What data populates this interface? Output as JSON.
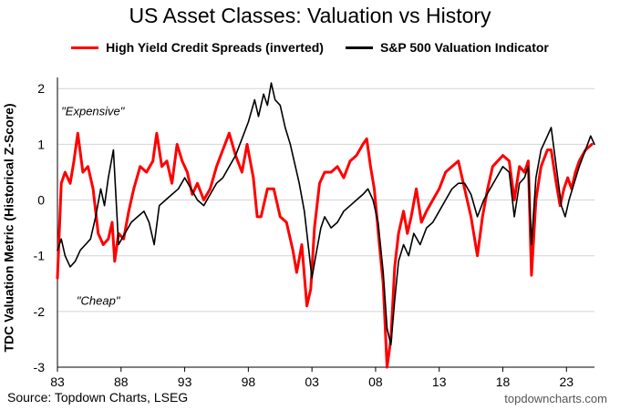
{
  "chart_data": {
    "type": "line",
    "title": "US Asset Classes: Valuation vs History",
    "ylabel": "TDC Valuation Metric (Historical Z-Score)",
    "xlabel": "",
    "xlim": [
      1983,
      2025.2
    ],
    "ylim": [
      -3,
      2.2
    ],
    "x_ticks": [
      {
        "label": "83",
        "value": 1983
      },
      {
        "label": "88",
        "value": 1988
      },
      {
        "label": "93",
        "value": 1993
      },
      {
        "label": "98",
        "value": 1998
      },
      {
        "label": "03",
        "value": 2003
      },
      {
        "label": "08",
        "value": 2008
      },
      {
        "label": "13",
        "value": 2013
      },
      {
        "label": "18",
        "value": 2018
      },
      {
        "label": "23",
        "value": 2023
      }
    ],
    "y_ticks": [
      {
        "label": "-3",
        "value": -3
      },
      {
        "label": "-2",
        "value": -2
      },
      {
        "label": "-1",
        "value": -1
      },
      {
        "label": "0",
        "value": 0
      },
      {
        "label": "1",
        "value": 1
      },
      {
        "label": "2",
        "value": 2
      }
    ],
    "annotations": [
      {
        "text": "\"Expensive\"",
        "x": 1983.3,
        "y": 1.6
      },
      {
        "text": "\"Cheap\"",
        "x": 1984.5,
        "y": -1.8
      }
    ],
    "series": [
      {
        "name": "High Yield Credit Spreads (inverted)",
        "color": "#ff0000",
        "points": [
          [
            1983.0,
            -1.4
          ],
          [
            1983.3,
            0.3
          ],
          [
            1983.6,
            0.5
          ],
          [
            1984.0,
            0.3
          ],
          [
            1984.3,
            0.7
          ],
          [
            1984.6,
            1.2
          ],
          [
            1985.0,
            0.5
          ],
          [
            1985.4,
            0.6
          ],
          [
            1985.8,
            0.2
          ],
          [
            1986.2,
            -0.6
          ],
          [
            1986.6,
            -0.8
          ],
          [
            1987.0,
            -0.7
          ],
          [
            1987.3,
            -0.4
          ],
          [
            1987.5,
            -1.1
          ],
          [
            1987.8,
            -0.6
          ],
          [
            1988.2,
            -0.7
          ],
          [
            1988.6,
            -0.2
          ],
          [
            1989.0,
            0.2
          ],
          [
            1989.5,
            0.6
          ],
          [
            1990.0,
            0.5
          ],
          [
            1990.5,
            0.7
          ],
          [
            1990.8,
            1.2
          ],
          [
            1991.2,
            0.6
          ],
          [
            1991.6,
            0.7
          ],
          [
            1992.0,
            0.3
          ],
          [
            1992.4,
            1.0
          ],
          [
            1992.8,
            0.7
          ],
          [
            1993.2,
            0.5
          ],
          [
            1993.6,
            0.1
          ],
          [
            1994.0,
            0.3
          ],
          [
            1994.5,
            0.0
          ],
          [
            1995.0,
            0.2
          ],
          [
            1995.5,
            0.6
          ],
          [
            1996.0,
            0.9
          ],
          [
            1996.5,
            1.2
          ],
          [
            1997.0,
            0.8
          ],
          [
            1997.5,
            0.5
          ],
          [
            1997.9,
            1.0
          ],
          [
            1998.4,
            0.4
          ],
          [
            1998.7,
            -0.3
          ],
          [
            1999.0,
            -0.3
          ],
          [
            1999.5,
            0.2
          ],
          [
            2000.0,
            0.2
          ],
          [
            2000.5,
            -0.3
          ],
          [
            2001.0,
            -0.4
          ],
          [
            2001.5,
            -0.9
          ],
          [
            2001.8,
            -1.3
          ],
          [
            2002.2,
            -0.8
          ],
          [
            2002.6,
            -1.9
          ],
          [
            2002.9,
            -1.6
          ],
          [
            2003.2,
            -0.5
          ],
          [
            2003.6,
            0.3
          ],
          [
            2004.0,
            0.5
          ],
          [
            2004.5,
            0.5
          ],
          [
            2005.0,
            0.6
          ],
          [
            2005.5,
            0.4
          ],
          [
            2006.0,
            0.7
          ],
          [
            2006.5,
            0.8
          ],
          [
            2007.0,
            1.0
          ],
          [
            2007.3,
            1.1
          ],
          [
            2007.6,
            0.6
          ],
          [
            2007.9,
            0.2
          ],
          [
            2008.3,
            -0.8
          ],
          [
            2008.6,
            -1.5
          ],
          [
            2008.9,
            -3.0
          ],
          [
            2009.2,
            -2.5
          ],
          [
            2009.5,
            -1.2
          ],
          [
            2009.8,
            -0.6
          ],
          [
            2010.2,
            -0.2
          ],
          [
            2010.5,
            -0.6
          ],
          [
            2010.8,
            -0.3
          ],
          [
            2011.2,
            0.2
          ],
          [
            2011.6,
            -0.4
          ],
          [
            2012.0,
            -0.2
          ],
          [
            2012.5,
            0.0
          ],
          [
            2013.0,
            0.2
          ],
          [
            2013.5,
            0.5
          ],
          [
            2014.0,
            0.6
          ],
          [
            2014.5,
            0.7
          ],
          [
            2015.0,
            0.2
          ],
          [
            2015.5,
            -0.3
          ],
          [
            2016.0,
            -1.0
          ],
          [
            2016.4,
            -0.3
          ],
          [
            2016.8,
            0.2
          ],
          [
            2017.2,
            0.6
          ],
          [
            2017.6,
            0.7
          ],
          [
            2018.0,
            0.8
          ],
          [
            2018.5,
            0.7
          ],
          [
            2018.9,
            0.0
          ],
          [
            2019.3,
            0.6
          ],
          [
            2019.7,
            0.5
          ],
          [
            2020.0,
            0.7
          ],
          [
            2020.25,
            -1.35
          ],
          [
            2020.6,
            0.0
          ],
          [
            2021.0,
            0.6
          ],
          [
            2021.5,
            0.9
          ],
          [
            2021.8,
            0.9
          ],
          [
            2022.2,
            0.3
          ],
          [
            2022.5,
            -0.1
          ],
          [
            2022.8,
            0.2
          ],
          [
            2023.1,
            0.4
          ],
          [
            2023.4,
            0.2
          ],
          [
            2023.7,
            0.5
          ],
          [
            2024.0,
            0.7
          ],
          [
            2024.5,
            0.9
          ],
          [
            2025.0,
            1.0
          ]
        ]
      },
      {
        "name": "S&P 500 Valuation Indicator",
        "color": "#000000",
        "points": [
          [
            1983.0,
            -0.9
          ],
          [
            1983.3,
            -0.7
          ],
          [
            1983.6,
            -1.0
          ],
          [
            1984.0,
            -1.2
          ],
          [
            1984.4,
            -1.1
          ],
          [
            1984.8,
            -0.9
          ],
          [
            1985.2,
            -0.8
          ],
          [
            1985.6,
            -0.7
          ],
          [
            1986.0,
            -0.3
          ],
          [
            1986.4,
            0.2
          ],
          [
            1986.7,
            -0.1
          ],
          [
            1987.0,
            0.4
          ],
          [
            1987.4,
            0.9
          ],
          [
            1987.8,
            -0.8
          ],
          [
            1988.3,
            -0.6
          ],
          [
            1988.8,
            -0.4
          ],
          [
            1989.3,
            -0.3
          ],
          [
            1989.8,
            -0.2
          ],
          [
            1990.2,
            -0.4
          ],
          [
            1990.6,
            -0.8
          ],
          [
            1991.0,
            -0.1
          ],
          [
            1991.5,
            0.0
          ],
          [
            1992.0,
            0.1
          ],
          [
            1992.5,
            0.2
          ],
          [
            1993.0,
            0.4
          ],
          [
            1993.5,
            0.2
          ],
          [
            1994.0,
            0.0
          ],
          [
            1994.5,
            -0.1
          ],
          [
            1995.0,
            0.1
          ],
          [
            1995.5,
            0.3
          ],
          [
            1996.0,
            0.4
          ],
          [
            1996.5,
            0.6
          ],
          [
            1997.0,
            0.8
          ],
          [
            1997.5,
            1.1
          ],
          [
            1998.0,
            1.4
          ],
          [
            1998.5,
            1.8
          ],
          [
            1998.8,
            1.5
          ],
          [
            1999.2,
            1.9
          ],
          [
            1999.5,
            1.7
          ],
          [
            1999.8,
            2.1
          ],
          [
            2000.1,
            1.8
          ],
          [
            2000.5,
            1.7
          ],
          [
            2000.9,
            1.3
          ],
          [
            2001.3,
            1.0
          ],
          [
            2001.7,
            0.6
          ],
          [
            2002.0,
            0.3
          ],
          [
            2002.4,
            -0.2
          ],
          [
            2002.7,
            -0.8
          ],
          [
            2003.0,
            -1.4
          ],
          [
            2003.3,
            -1.0
          ],
          [
            2003.7,
            -0.5
          ],
          [
            2004.0,
            -0.3
          ],
          [
            2004.5,
            -0.5
          ],
          [
            2005.0,
            -0.4
          ],
          [
            2005.5,
            -0.2
          ],
          [
            2006.0,
            -0.1
          ],
          [
            2006.5,
            0.0
          ],
          [
            2007.0,
            0.1
          ],
          [
            2007.4,
            0.2
          ],
          [
            2007.8,
            0.0
          ],
          [
            2008.2,
            -0.4
          ],
          [
            2008.6,
            -1.3
          ],
          [
            2008.9,
            -2.3
          ],
          [
            2009.2,
            -2.6
          ],
          [
            2009.5,
            -1.8
          ],
          [
            2009.8,
            -1.1
          ],
          [
            2010.2,
            -0.8
          ],
          [
            2010.6,
            -1.0
          ],
          [
            2011.0,
            -0.6
          ],
          [
            2011.5,
            -0.8
          ],
          [
            2012.0,
            -0.5
          ],
          [
            2012.5,
            -0.4
          ],
          [
            2013.0,
            -0.2
          ],
          [
            2013.5,
            0.0
          ],
          [
            2014.0,
            0.2
          ],
          [
            2014.5,
            0.3
          ],
          [
            2015.0,
            0.3
          ],
          [
            2015.5,
            0.1
          ],
          [
            2016.0,
            -0.3
          ],
          [
            2016.5,
            0.0
          ],
          [
            2017.0,
            0.2
          ],
          [
            2017.5,
            0.4
          ],
          [
            2018.0,
            0.6
          ],
          [
            2018.5,
            0.5
          ],
          [
            2018.9,
            -0.3
          ],
          [
            2019.3,
            0.3
          ],
          [
            2019.7,
            0.4
          ],
          [
            2020.0,
            0.6
          ],
          [
            2020.25,
            -0.8
          ],
          [
            2020.6,
            0.4
          ],
          [
            2021.0,
            0.9
          ],
          [
            2021.4,
            1.1
          ],
          [
            2021.8,
            1.3
          ],
          [
            2022.2,
            0.6
          ],
          [
            2022.6,
            -0.1
          ],
          [
            2022.9,
            -0.3
          ],
          [
            2023.2,
            0.0
          ],
          [
            2023.6,
            0.3
          ],
          [
            2024.0,
            0.6
          ],
          [
            2024.5,
            0.9
          ],
          [
            2024.9,
            1.15
          ],
          [
            2025.2,
            1.0
          ]
        ]
      }
    ]
  },
  "source": "Source: Topdown Charts, LSEG",
  "watermark": "topdowncharts.com"
}
